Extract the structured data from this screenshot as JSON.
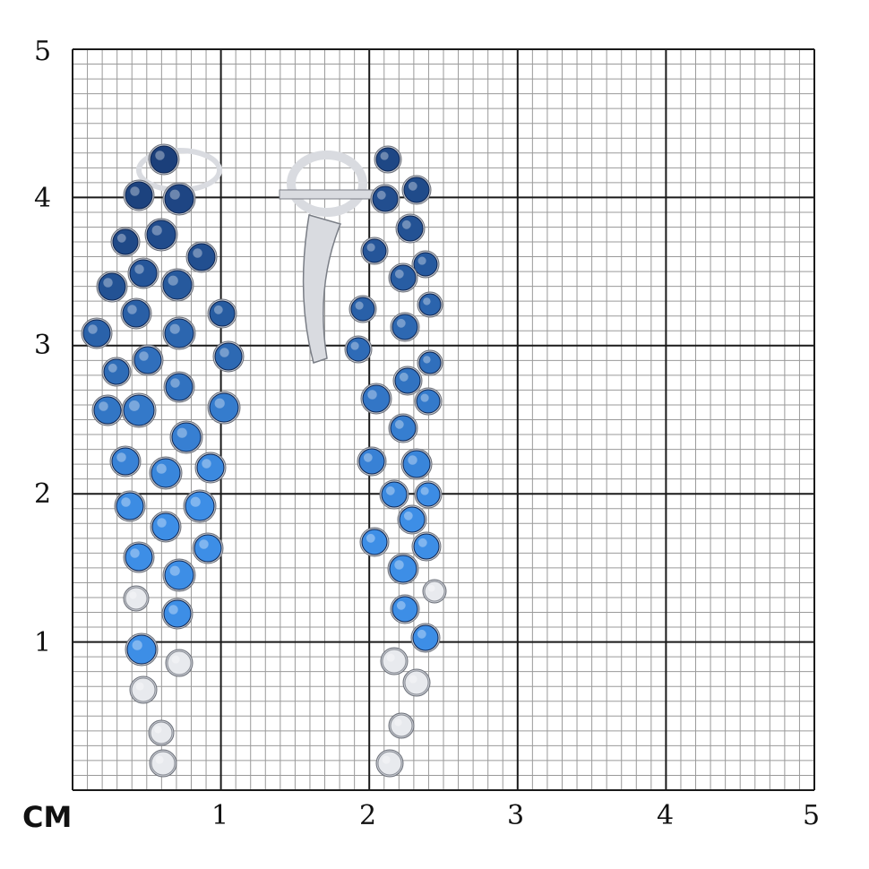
{
  "scale": {
    "unit_label": "СМ",
    "x_ticks": [
      "1",
      "2",
      "3",
      "4",
      "5"
    ],
    "y_ticks": [
      "5",
      "4",
      "3",
      "2",
      "1"
    ],
    "range_cm": [
      0,
      5
    ],
    "minor_division": "1 mm"
  },
  "colors": {
    "minor_grid": "#9a9a9a",
    "major_grid": "#1a1a1a",
    "sapphire_dark": "#1b3f7a",
    "sapphire_light": "#3d8ee6",
    "diamond": "#e8eaee",
    "metal": "#d9dbe0"
  },
  "subject": "pair of sapphire and diamond cluster earrings"
}
